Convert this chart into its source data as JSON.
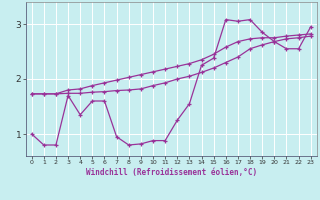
{
  "xlabel": "Windchill (Refroidissement éolien,°C)",
  "background_color": "#c8eef0",
  "grid_color": "#ffffff",
  "line_color": "#993399",
  "xlim": [
    -0.5,
    23.5
  ],
  "ylim": [
    0.6,
    3.4
  ],
  "yticks": [
    1,
    2,
    3
  ],
  "xticks": [
    0,
    1,
    2,
    3,
    4,
    5,
    6,
    7,
    8,
    9,
    10,
    11,
    12,
    13,
    14,
    15,
    16,
    17,
    18,
    19,
    20,
    21,
    22,
    23
  ],
  "series": [
    [
      1.0,
      0.8,
      0.8,
      1.7,
      1.35,
      1.6,
      1.6,
      0.95,
      0.8,
      0.82,
      0.88,
      0.88,
      1.25,
      1.55,
      2.25,
      2.38,
      3.08,
      3.05,
      3.08,
      2.85,
      2.68,
      2.55,
      2.55,
      2.95
    ],
    [
      1.73,
      1.73,
      1.73,
      1.8,
      1.82,
      1.88,
      1.93,
      1.98,
      2.03,
      2.08,
      2.13,
      2.18,
      2.23,
      2.28,
      2.35,
      2.45,
      2.58,
      2.68,
      2.73,
      2.75,
      2.75,
      2.78,
      2.8,
      2.82
    ],
    [
      1.73,
      1.73,
      1.73,
      1.74,
      1.74,
      1.76,
      1.77,
      1.79,
      1.8,
      1.82,
      1.88,
      1.93,
      2.0,
      2.05,
      2.12,
      2.2,
      2.3,
      2.4,
      2.55,
      2.62,
      2.68,
      2.73,
      2.75,
      2.78
    ]
  ]
}
